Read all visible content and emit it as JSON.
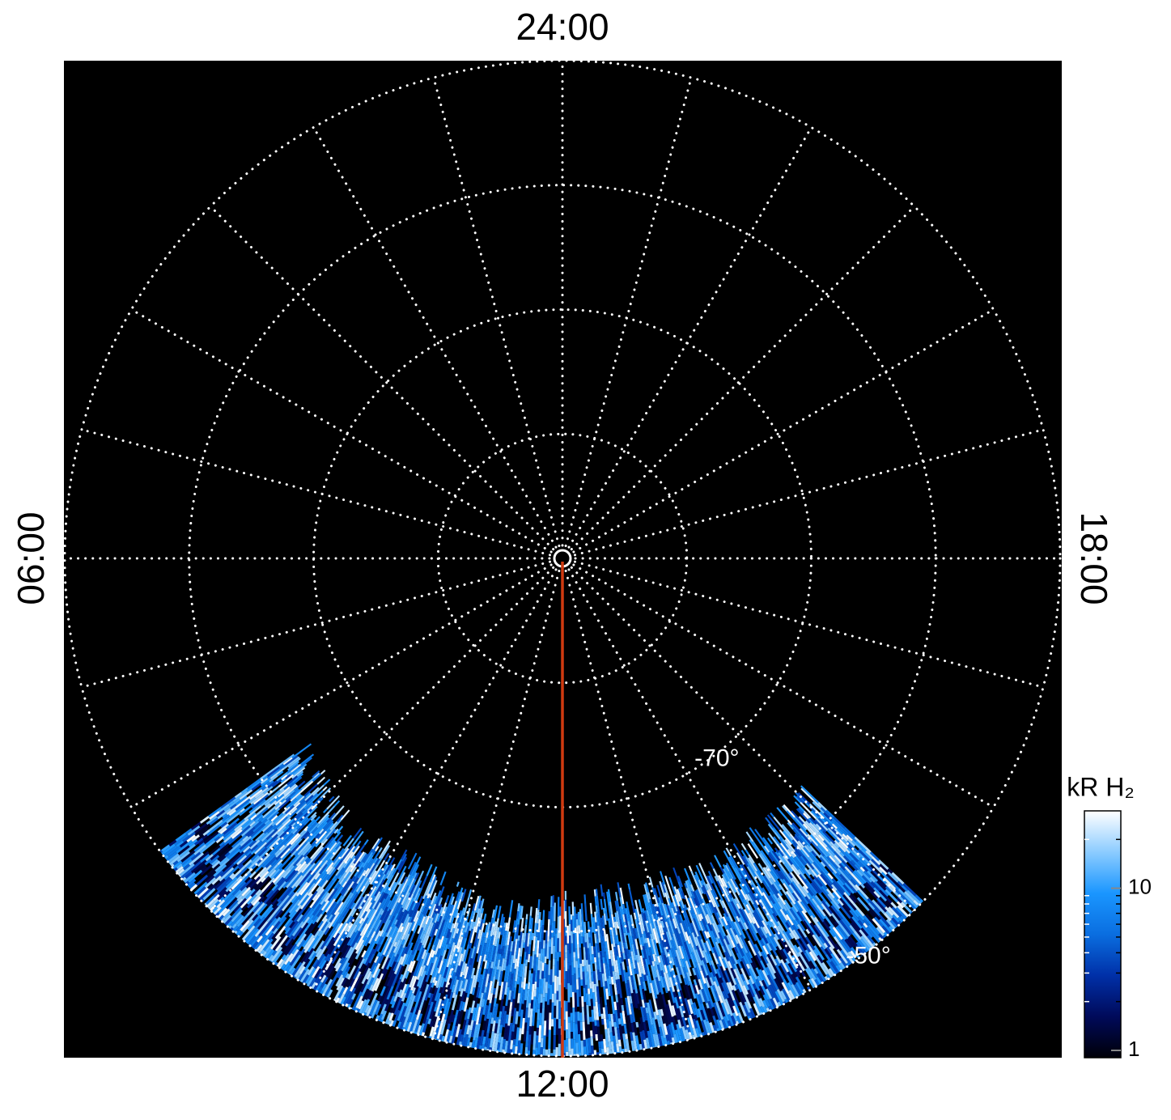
{
  "chart_data": {
    "type": "polar",
    "lt_ticks": [
      {
        "value": 24,
        "label": "24:00"
      },
      {
        "value": 6,
        "label": "06:00"
      },
      {
        "value": 12,
        "label": "12:00"
      },
      {
        "value": 18,
        "label": "18:00"
      }
    ],
    "rlim": [
      -90,
      -50
    ],
    "lat_rings": [
      -80,
      -70,
      -60,
      -50
    ],
    "lat_labels": [
      {
        "value": -70,
        "label": "-70°"
      },
      {
        "value": -50,
        "label": "-50°"
      }
    ],
    "meridian_step_hours": 1,
    "grid": true,
    "colorbar": {
      "label": "kR H₂",
      "log": true,
      "clim": [
        1,
        30
      ],
      "ticks": [
        1,
        10
      ],
      "colormap": [
        "#000008",
        "#000a5a",
        "#0030a8",
        "#0a6ee0",
        "#1a96ff",
        "#8cccff",
        "#ffffff"
      ]
    }
  }
}
